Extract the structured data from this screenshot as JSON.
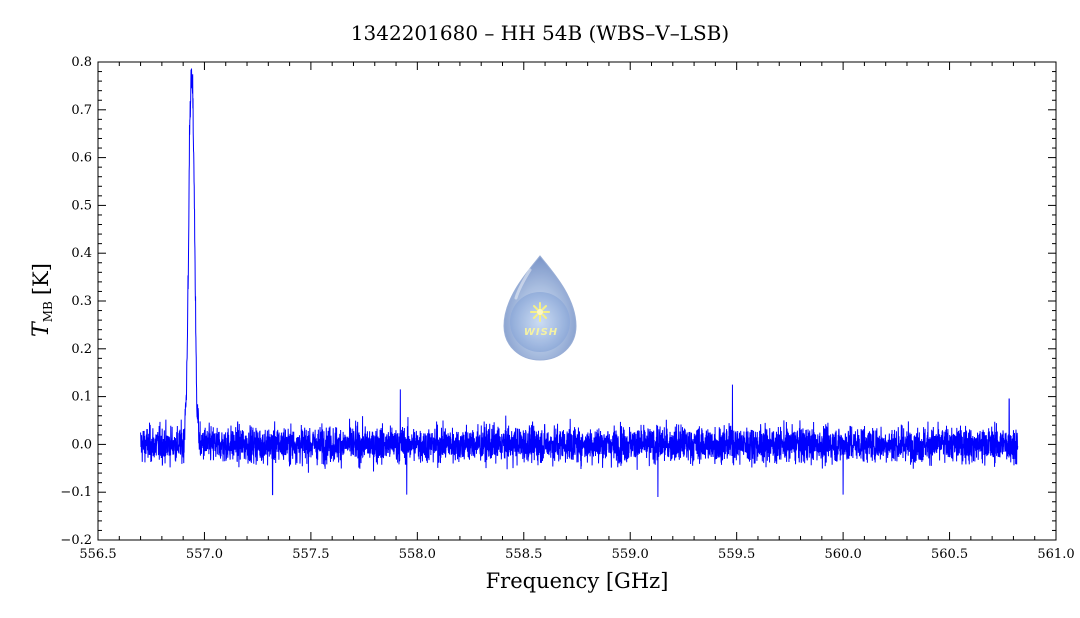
{
  "chart_data": {
    "type": "line",
    "title": "1342201680 – HH 54B (WBS–V–LSB)",
    "xlabel": "Frequency [GHz]",
    "ylabel_main": "T",
    "ylabel_sub": "MB",
    "ylabel_unit": "[K]",
    "xlim": [
      556.5,
      561.0
    ],
    "ylim": [
      -0.2,
      0.8
    ],
    "x_ticks": [
      "556.5",
      "557.0",
      "557.5",
      "558.0",
      "558.5",
      "559.0",
      "559.5",
      "560.0",
      "560.5",
      "561.0"
    ],
    "x_tick_values": [
      556.5,
      557.0,
      557.5,
      558.0,
      558.5,
      559.0,
      559.5,
      560.0,
      560.5,
      561.0
    ],
    "y_ticks": [
      "−0.2",
      "−0.1",
      "0.0",
      "0.1",
      "0.2",
      "0.3",
      "0.4",
      "0.5",
      "0.6",
      "0.7",
      "0.8"
    ],
    "y_tick_values": [
      -0.2,
      -0.1,
      0.0,
      0.1,
      0.2,
      0.3,
      0.4,
      0.5,
      0.6,
      0.7,
      0.8
    ],
    "series": [
      {
        "color": "#0000ff",
        "x_range": [
          556.7,
          560.82
        ],
        "noise_rms": 0.025,
        "line": {
          "center": 556.943,
          "peak": 0.76,
          "x": [
            556.905,
            556.915,
            556.925,
            556.93,
            556.935,
            556.94,
            556.945,
            556.95,
            556.955,
            556.96,
            556.965,
            556.975
          ],
          "y": [
            0.02,
            0.1,
            0.38,
            0.66,
            0.74,
            0.76,
            0.73,
            0.6,
            0.42,
            0.2,
            0.08,
            0.02
          ]
        },
        "noise_extrema": [
          {
            "x": 557.32,
            "y": -0.105
          },
          {
            "x": 557.92,
            "y": 0.115
          },
          {
            "x": 557.95,
            "y": -0.105
          },
          {
            "x": 559.13,
            "y": -0.11
          },
          {
            "x": 559.48,
            "y": 0.125
          },
          {
            "x": 560.0,
            "y": -0.105
          },
          {
            "x": 560.78,
            "y": 0.095
          }
        ]
      }
    ],
    "grid": false,
    "legend": "none"
  },
  "watermark": {
    "text": "WISH",
    "icon": "wish-drop-logo-icon"
  }
}
